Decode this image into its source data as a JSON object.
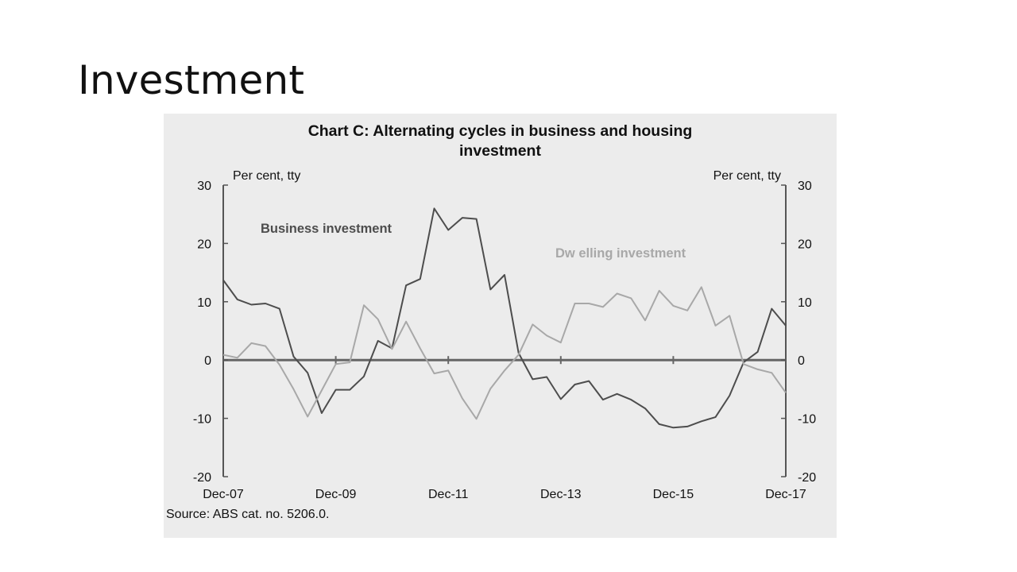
{
  "slide": {
    "title": "Investment"
  },
  "chart_data": {
    "type": "line",
    "title_lines": [
      "Chart C: Alternating cycles in business and housing",
      "investment"
    ],
    "left_unit": "Per cent, tty",
    "right_unit": "Per cent, tty",
    "ylim": [
      -20,
      30
    ],
    "yticks": [
      -20,
      -10,
      0,
      10,
      20,
      30
    ],
    "x_tick_labels": [
      "Dec-07",
      "Dec-09",
      "Dec-11",
      "Dec-13",
      "Dec-15",
      "Dec-17"
    ],
    "x_tick_positions": [
      0,
      8,
      16,
      24,
      32,
      40
    ],
    "source": "Source: ABS cat. no. 5206.0.",
    "series": [
      {
        "name": "Business investment",
        "color": "#4d4d4d",
        "values": [
          13.7,
          10.4,
          9.5,
          9.7,
          8.8,
          0.6,
          -2.2,
          -9.1,
          -5.1,
          -5.1,
          -2.8,
          3.3,
          2.0,
          12.8,
          13.9,
          26.0,
          22.3,
          24.4,
          24.2,
          12.1,
          14.6,
          1.2,
          -3.3,
          -2.9,
          -6.7,
          -4.2,
          -3.6,
          -6.8,
          -5.8,
          -6.8,
          -8.3,
          -11.0,
          -11.6,
          -11.4,
          -10.5,
          -9.8,
          -6.1,
          -0.4,
          1.4,
          8.8,
          5.9
        ],
        "label": "Business investment"
      },
      {
        "name": "Dwelling investment",
        "color": "#a8a8a8",
        "values": [
          0.9,
          0.4,
          2.9,
          2.4,
          -0.8,
          -5.0,
          -9.7,
          -5.2,
          -0.7,
          -0.4,
          9.4,
          7.0,
          1.9,
          6.6,
          2.0,
          -2.3,
          -1.8,
          -6.6,
          -10.1,
          -4.9,
          -1.8,
          0.9,
          6.1,
          4.2,
          3.0,
          9.7,
          9.7,
          9.1,
          11.4,
          10.6,
          6.8,
          11.9,
          9.3,
          8.5,
          12.5,
          5.9,
          7.6,
          -0.7,
          -1.6,
          -2.2,
          -5.6
        ],
        "label": "Dw elling investment"
      }
    ],
    "legend": "inline labels"
  }
}
